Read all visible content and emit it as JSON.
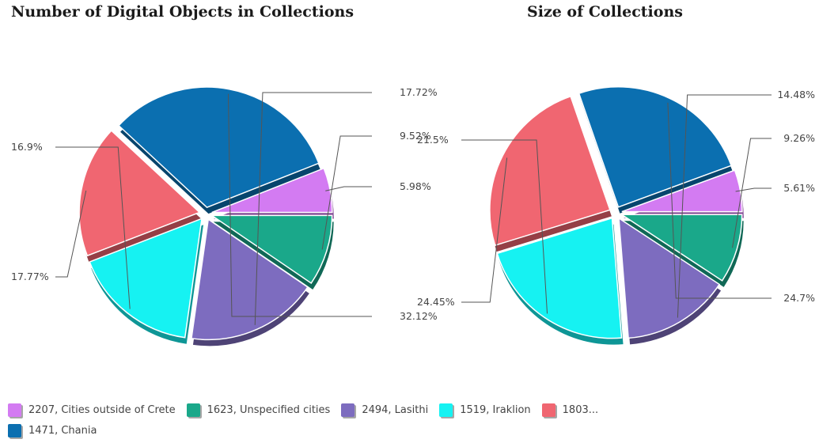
{
  "chart_data": [
    {
      "type": "pie",
      "title": "Number of Digital Objects in Collections",
      "slices": [
        {
          "legend_index": 0,
          "value": 5.98,
          "label": "5.98%"
        },
        {
          "legend_index": 5,
          "value": 32.12,
          "label": "32.12%"
        },
        {
          "legend_index": 4,
          "value": 17.77,
          "label": "17.77%"
        },
        {
          "legend_index": 3,
          "value": 16.9,
          "label": "16.9%"
        },
        {
          "legend_index": 2,
          "value": 17.72,
          "label": "17.72%"
        },
        {
          "legend_index": 1,
          "value": 9.52,
          "label": "9.52%"
        }
      ]
    },
    {
      "type": "pie",
      "title": "Size of Collections",
      "slices": [
        {
          "legend_index": 0,
          "value": 5.61,
          "label": "5.61%"
        },
        {
          "legend_index": 5,
          "value": 24.7,
          "label": "24.7%"
        },
        {
          "legend_index": 4,
          "value": 24.45,
          "label": "24.45%"
        },
        {
          "legend_index": 3,
          "value": 21.5,
          "label": "21.5%"
        },
        {
          "legend_index": 2,
          "value": 14.48,
          "label": "14.48%"
        },
        {
          "legend_index": 1,
          "value": 9.26,
          "label": "9.26%"
        }
      ]
    }
  ],
  "legend": [
    {
      "label": "2207, Cities outside of Crete",
      "color": "#d37bf2"
    },
    {
      "label": "1623, Unspecified cities",
      "color": "#1aa88a"
    },
    {
      "label": "2494, Lasithi",
      "color": "#7d6cbf"
    },
    {
      "label": "1519, Iraklion",
      "color": "#16f2f2"
    },
    {
      "label": "1803...",
      "color": "#f06671"
    },
    {
      "label": "1471, Chania",
      "color": "#0b6fb0"
    }
  ],
  "legend_placement": "bottom"
}
